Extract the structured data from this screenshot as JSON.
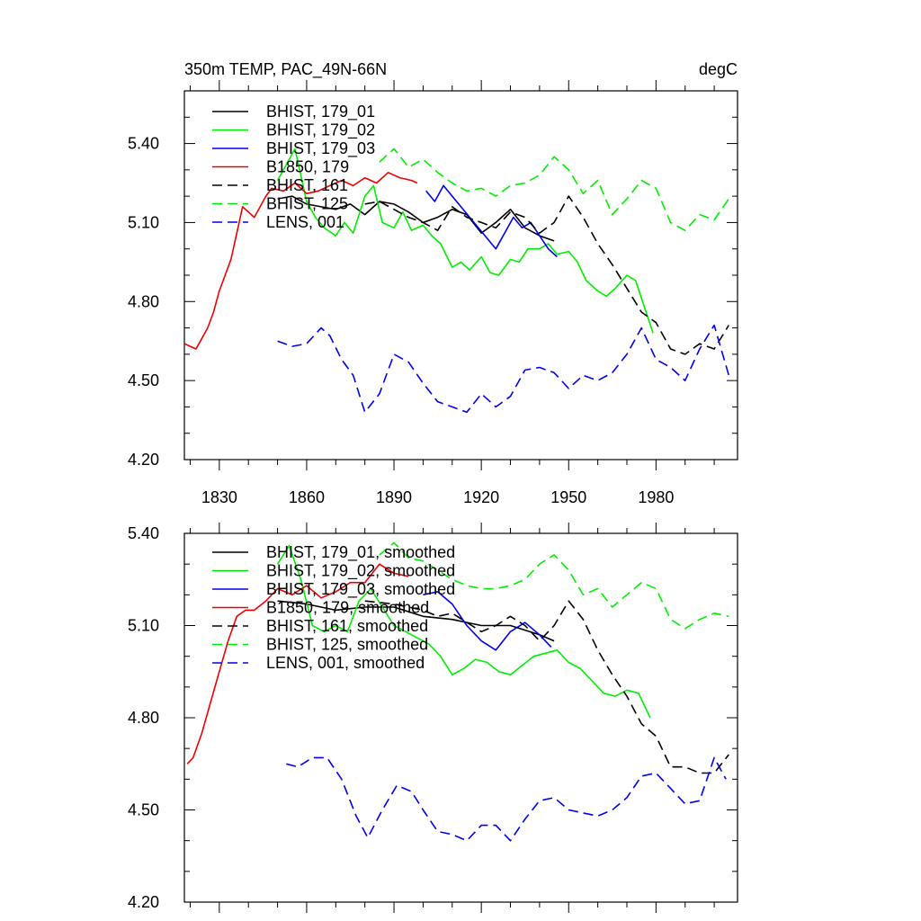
{
  "chart_data": [
    {
      "type": "line",
      "title_left": "350m TEMP, PAC_49N-66N",
      "title_right": "degC",
      "xlabel": "",
      "ylabel": "",
      "xlim": [
        1818,
        2008
      ],
      "ylim": [
        4.2,
        5.6
      ],
      "xticks": [
        1830,
        1860,
        1890,
        1920,
        1950,
        1980
      ],
      "xtick_labels": [
        "1830",
        "1860",
        "1890",
        "1920",
        "1950",
        "1980"
      ],
      "yticks": [
        4.2,
        4.5,
        4.8,
        5.1,
        5.4
      ],
      "ytick_labels": [
        "4.20",
        "4.50",
        "4.80",
        "5.10",
        "5.40"
      ],
      "legend_position": "top-left",
      "series": [
        {
          "name": "BHIST, 179_01",
          "color": "#000000",
          "dash": "solid",
          "x": [
            1850,
            1855,
            1860,
            1865,
            1870,
            1875,
            1880,
            1885,
            1890,
            1895,
            1900,
            1905,
            1910,
            1915,
            1920,
            1925,
            1930,
            1935,
            1940,
            1945
          ],
          "y": [
            5.19,
            5.2,
            5.17,
            5.16,
            5.15,
            5.17,
            5.13,
            5.18,
            5.17,
            5.14,
            5.1,
            5.12,
            5.15,
            5.13,
            5.06,
            5.1,
            5.15,
            5.08,
            5.05,
            5.03
          ]
        },
        {
          "name": "BHIST, 179_02",
          "color": "#00ee00",
          "dash": "solid",
          "x": [
            1850,
            1853,
            1856,
            1860,
            1863,
            1866,
            1870,
            1873,
            1876,
            1880,
            1883,
            1886,
            1890,
            1893,
            1896,
            1900,
            1903,
            1906,
            1910,
            1913,
            1916,
            1920,
            1923,
            1926,
            1930,
            1933,
            1936,
            1940,
            1943,
            1946,
            1950,
            1953,
            1956,
            1960,
            1963,
            1966,
            1970,
            1973,
            1976,
            1979
          ],
          "y": [
            5.26,
            5.32,
            5.38,
            5.18,
            5.12,
            5.08,
            5.05,
            5.1,
            5.06,
            5.2,
            5.24,
            5.1,
            5.08,
            5.14,
            5.07,
            5.09,
            5.05,
            5.02,
            4.93,
            4.95,
            4.92,
            4.97,
            4.91,
            4.9,
            4.96,
            4.95,
            5.0,
            5.0,
            5.02,
            4.98,
            4.99,
            4.95,
            4.88,
            4.84,
            4.82,
            4.85,
            4.9,
            4.88,
            4.78,
            4.68
          ]
        },
        {
          "name": "BHIST, 179_03",
          "color": "#0000ee",
          "dash": "solid",
          "x": [
            1901,
            1904,
            1907,
            1910,
            1913,
            1916,
            1919,
            1922,
            1925,
            1928,
            1931,
            1934,
            1937,
            1940,
            1943,
            1946
          ],
          "y": [
            5.22,
            5.18,
            5.24,
            5.2,
            5.16,
            5.12,
            5.08,
            5.04,
            5.0,
            5.06,
            5.12,
            5.08,
            5.1,
            5.05,
            5.0,
            4.97
          ]
        },
        {
          "name": "B1850, 179",
          "color": "#ee0000",
          "dash": "solid",
          "x": [
            1818,
            1820,
            1822,
            1824,
            1826,
            1828,
            1830,
            1832,
            1834,
            1836,
            1838,
            1840,
            1842,
            1844,
            1846,
            1848,
            1852,
            1856,
            1860,
            1864,
            1868,
            1872,
            1876,
            1880,
            1884,
            1888,
            1892,
            1896,
            1898
          ],
          "y": [
            4.64,
            4.63,
            4.62,
            4.66,
            4.7,
            4.76,
            4.84,
            4.9,
            4.96,
            5.06,
            5.16,
            5.14,
            5.12,
            5.16,
            5.2,
            5.23,
            5.22,
            5.25,
            5.21,
            5.22,
            5.24,
            5.26,
            5.24,
            5.27,
            5.25,
            5.29,
            5.27,
            5.26,
            5.25
          ]
        },
        {
          "name": "BHIST, 161",
          "color": "#000000",
          "dash": "dash",
          "x": [
            1880,
            1885,
            1890,
            1895,
            1900,
            1905,
            1910,
            1915,
            1920,
            1925,
            1930,
            1935,
            1940,
            1945,
            1950,
            1955,
            1960,
            1965,
            1970,
            1975,
            1980,
            1985,
            1990,
            1995,
            2000,
            2005
          ],
          "y": [
            5.17,
            5.18,
            5.15,
            5.12,
            5.1,
            5.07,
            5.16,
            5.12,
            5.1,
            5.08,
            5.14,
            5.12,
            5.06,
            5.1,
            5.2,
            5.12,
            5.02,
            4.94,
            4.85,
            4.76,
            4.72,
            4.62,
            4.6,
            4.64,
            4.62,
            4.71
          ]
        },
        {
          "name": "BHIST, 125",
          "color": "#00ee00",
          "dash": "dash",
          "x": [
            1885,
            1890,
            1895,
            1900,
            1905,
            1910,
            1915,
            1920,
            1925,
            1930,
            1935,
            1940,
            1945,
            1950,
            1955,
            1960,
            1965,
            1970,
            1975,
            1980,
            1985,
            1990,
            1995,
            2000,
            2005
          ],
          "y": [
            5.33,
            5.38,
            5.31,
            5.34,
            5.29,
            5.25,
            5.22,
            5.23,
            5.2,
            5.24,
            5.25,
            5.28,
            5.35,
            5.3,
            5.21,
            5.26,
            5.13,
            5.19,
            5.26,
            5.23,
            5.1,
            5.07,
            5.13,
            5.11,
            5.19
          ]
        },
        {
          "name": "LENS, 001",
          "color": "#0000ee",
          "dash": "dash",
          "x": [
            1850,
            1855,
            1860,
            1865,
            1868,
            1872,
            1876,
            1880,
            1885,
            1890,
            1895,
            1900,
            1905,
            1910,
            1915,
            1920,
            1925,
            1930,
            1935,
            1940,
            1945,
            1950,
            1955,
            1960,
            1965,
            1970,
            1975,
            1980,
            1985,
            1990,
            1995,
            2000,
            2005
          ],
          "y": [
            4.65,
            4.63,
            4.64,
            4.7,
            4.67,
            4.58,
            4.52,
            4.38,
            4.45,
            4.6,
            4.57,
            4.49,
            4.42,
            4.4,
            4.38,
            4.45,
            4.4,
            4.44,
            4.54,
            4.55,
            4.53,
            4.47,
            4.52,
            4.5,
            4.53,
            4.6,
            4.7,
            4.58,
            4.55,
            4.5,
            4.62,
            4.71,
            4.52
          ]
        }
      ]
    },
    {
      "type": "line",
      "title_left": "",
      "title_right": "",
      "xlabel": "",
      "ylabel": "",
      "xlim": [
        1818,
        2008
      ],
      "ylim": [
        4.2,
        5.4
      ],
      "xticks": [
        1830,
        1860,
        1890,
        1920,
        1950,
        1980
      ],
      "xtick_labels": [],
      "yticks": [
        4.2,
        4.5,
        4.8,
        5.1,
        5.4
      ],
      "ytick_labels": [
        "4.20",
        "4.50",
        "4.80",
        "5.10",
        "5.40"
      ],
      "legend_position": "top-left",
      "series": [
        {
          "name": "BHIST, 179_01, smoothed",
          "color": "#000000",
          "dash": "solid",
          "x": [
            1850,
            1860,
            1870,
            1880,
            1890,
            1900,
            1910,
            1920,
            1930,
            1940,
            1945
          ],
          "y": [
            5.18,
            5.17,
            5.15,
            5.16,
            5.16,
            5.13,
            5.12,
            5.1,
            5.1,
            5.07,
            5.05
          ]
        },
        {
          "name": "BHIST, 179_02, smoothed",
          "color": "#00ee00",
          "dash": "solid",
          "x": [
            1850,
            1854,
            1858,
            1862,
            1866,
            1870,
            1874,
            1878,
            1882,
            1886,
            1890,
            1894,
            1898,
            1902,
            1906,
            1910,
            1914,
            1918,
            1922,
            1926,
            1930,
            1934,
            1938,
            1942,
            1946,
            1950,
            1954,
            1958,
            1962,
            1966,
            1970,
            1974,
            1978
          ],
          "y": [
            5.3,
            5.36,
            5.25,
            5.1,
            5.08,
            5.1,
            5.08,
            5.18,
            5.22,
            5.16,
            5.1,
            5.08,
            5.06,
            5.04,
            5.0,
            4.94,
            4.96,
            4.99,
            4.98,
            4.95,
            4.94,
            4.97,
            5.0,
            5.01,
            5.02,
            4.98,
            4.96,
            4.92,
            4.88,
            4.87,
            4.89,
            4.88,
            4.8
          ]
        },
        {
          "name": "BHIST, 179_03, smoothed",
          "color": "#0000ee",
          "dash": "solid",
          "x": [
            1900,
            1905,
            1910,
            1915,
            1920,
            1925,
            1930,
            1935,
            1940,
            1944
          ],
          "y": [
            5.2,
            5.21,
            5.17,
            5.1,
            5.05,
            5.02,
            5.08,
            5.11,
            5.07,
            5.03
          ]
        },
        {
          "name": "B1850, 179, smoothed",
          "color": "#ee0000",
          "dash": "solid",
          "x": [
            1819,
            1821,
            1824,
            1827,
            1830,
            1833,
            1836,
            1839,
            1842,
            1846,
            1850,
            1855,
            1860,
            1865,
            1870,
            1875,
            1880,
            1885,
            1890,
            1895
          ],
          "y": [
            4.65,
            4.67,
            4.75,
            4.85,
            4.95,
            5.05,
            5.13,
            5.15,
            5.15,
            5.18,
            5.22,
            5.2,
            5.23,
            5.19,
            5.21,
            5.24,
            5.24,
            5.3,
            5.27,
            5.26
          ]
        },
        {
          "name": "BHIST, 161, smoothed",
          "color": "#000000",
          "dash": "dash",
          "x": [
            1880,
            1890,
            1900,
            1905,
            1910,
            1915,
            1920,
            1925,
            1930,
            1935,
            1940,
            1945,
            1950,
            1955,
            1960,
            1965,
            1970,
            1975,
            1980,
            1985,
            1990,
            1995,
            2000,
            2005
          ],
          "y": [
            5.18,
            5.17,
            5.15,
            5.13,
            5.14,
            5.11,
            5.08,
            5.1,
            5.13,
            5.1,
            5.05,
            5.1,
            5.18,
            5.12,
            5.02,
            4.94,
            4.87,
            4.78,
            4.74,
            4.64,
            4.64,
            4.62,
            4.62,
            4.68
          ]
        },
        {
          "name": "BHIST, 125, smoothed",
          "color": "#00ee00",
          "dash": "dash",
          "x": [
            1885,
            1890,
            1895,
            1900,
            1905,
            1910,
            1915,
            1920,
            1925,
            1930,
            1935,
            1940,
            1945,
            1950,
            1955,
            1960,
            1965,
            1970,
            1975,
            1980,
            1985,
            1990,
            1995,
            2000,
            2005
          ],
          "y": [
            5.33,
            5.37,
            5.32,
            5.31,
            5.28,
            5.25,
            5.23,
            5.22,
            5.22,
            5.23,
            5.25,
            5.3,
            5.33,
            5.28,
            5.2,
            5.22,
            5.16,
            5.2,
            5.24,
            5.22,
            5.12,
            5.09,
            5.12,
            5.14,
            5.13
          ]
        },
        {
          "name": "LENS, 001, smoothed",
          "color": "#0000ee",
          "dash": "dash",
          "x": [
            1853,
            1857,
            1862,
            1867,
            1872,
            1877,
            1881,
            1886,
            1891,
            1896,
            1900,
            1905,
            1910,
            1915,
            1920,
            1925,
            1930,
            1935,
            1940,
            1945,
            1950,
            1955,
            1960,
            1965,
            1970,
            1975,
            1980,
            1985,
            1990,
            1995,
            2000,
            2004
          ],
          "y": [
            4.65,
            4.64,
            4.67,
            4.67,
            4.6,
            4.48,
            4.41,
            4.5,
            4.58,
            4.56,
            4.5,
            4.43,
            4.42,
            4.4,
            4.45,
            4.45,
            4.4,
            4.47,
            4.53,
            4.54,
            4.5,
            4.49,
            4.48,
            4.5,
            4.54,
            4.61,
            4.62,
            4.57,
            4.52,
            4.53,
            4.67,
            4.6
          ]
        }
      ]
    }
  ]
}
